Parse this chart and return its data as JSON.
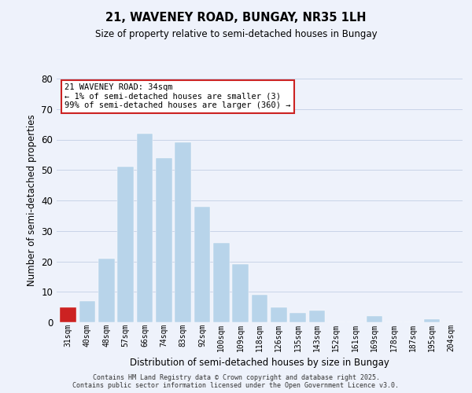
{
  "title": "21, WAVENEY ROAD, BUNGAY, NR35 1LH",
  "subtitle": "Size of property relative to semi-detached houses in Bungay",
  "xlabel": "Distribution of semi-detached houses by size in Bungay",
  "ylabel": "Number of semi-detached properties",
  "bar_labels": [
    "31sqm",
    "40sqm",
    "48sqm",
    "57sqm",
    "66sqm",
    "74sqm",
    "83sqm",
    "92sqm",
    "100sqm",
    "109sqm",
    "118sqm",
    "126sqm",
    "135sqm",
    "143sqm",
    "152sqm",
    "161sqm",
    "169sqm",
    "178sqm",
    "187sqm",
    "195sqm",
    "204sqm"
  ],
  "bar_values": [
    5,
    7,
    21,
    51,
    62,
    54,
    59,
    38,
    26,
    19,
    9,
    5,
    3,
    4,
    0,
    0,
    2,
    0,
    0,
    1,
    0
  ],
  "bar_color": "#b8d4ea",
  "highlight_bar_index": 0,
  "highlight_bar_color": "#cc2222",
  "ylim": [
    0,
    80
  ],
  "yticks": [
    0,
    10,
    20,
    30,
    40,
    50,
    60,
    70,
    80
  ],
  "grid_color": "#c8d4e8",
  "background_color": "#eef2fb",
  "annotation_text": "21 WAVENEY ROAD: 34sqm\n← 1% of semi-detached houses are smaller (3)\n99% of semi-detached houses are larger (360) →",
  "annotation_box_color": "#ffffff",
  "annotation_box_edge_color": "#cc2222",
  "footer_line1": "Contains HM Land Registry data © Crown copyright and database right 2025.",
  "footer_line2": "Contains public sector information licensed under the Open Government Licence v3.0."
}
